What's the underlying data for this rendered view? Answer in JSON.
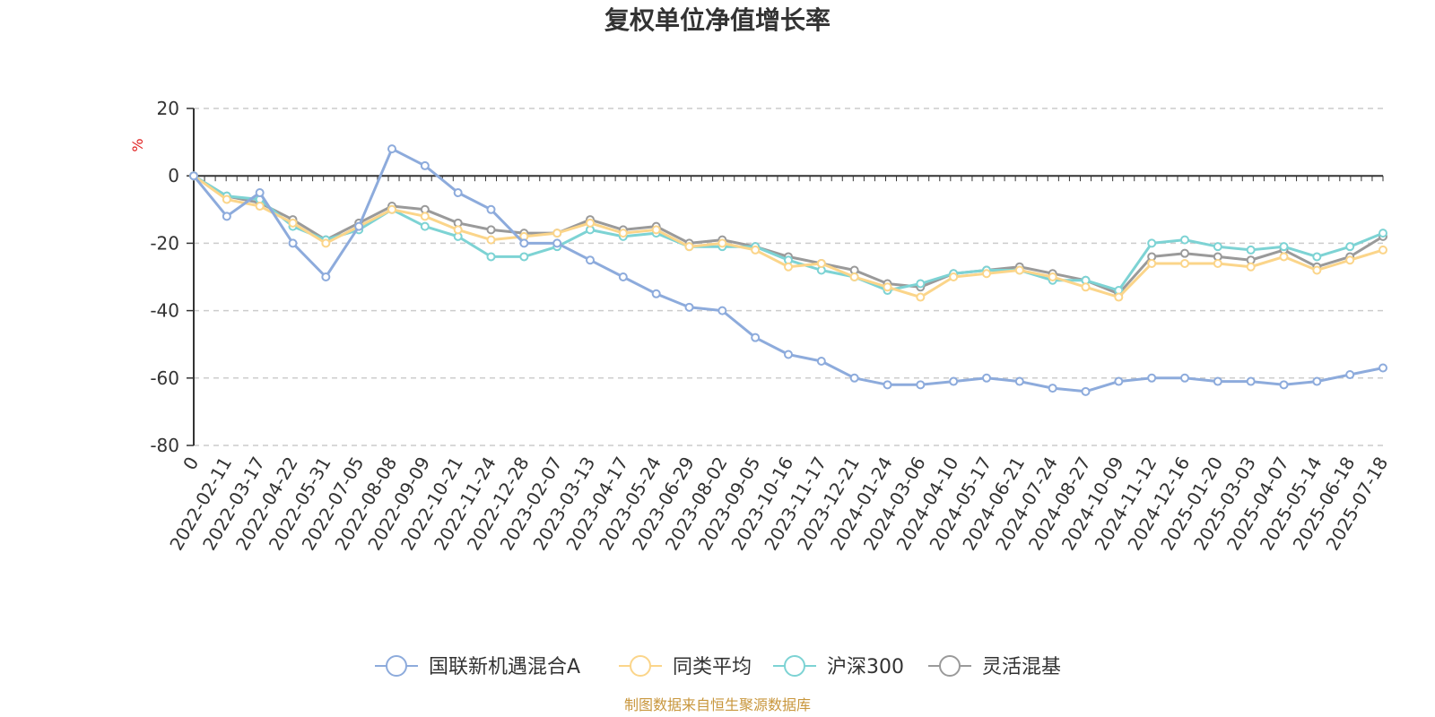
{
  "chart_data": {
    "type": "line",
    "title": "复权单位净值增长率",
    "ylabel": "%",
    "ylim": [
      -80,
      20
    ],
    "y_ticks": [
      "20",
      "0",
      "-20",
      "-40",
      "-60",
      "-80"
    ],
    "grid": true,
    "legend_position": "bottom",
    "x": [
      "0",
      "2022-02-11",
      "2022-03-17",
      "2022-04-22",
      "2022-05-31",
      "2022-07-05",
      "2022-08-08",
      "2022-09-09",
      "2022-10-21",
      "2022-11-24",
      "2022-12-28",
      "2023-02-07",
      "2023-03-13",
      "2023-04-17",
      "2023-05-24",
      "2023-06-29",
      "2023-08-02",
      "2023-09-05",
      "2023-10-16",
      "2023-11-17",
      "2023-12-21",
      "2024-01-24",
      "2024-03-06",
      "2024-04-10",
      "2024-05-17",
      "2024-06-21",
      "2024-07-24",
      "2024-08-27",
      "2024-10-09",
      "2024-11-12",
      "2024-12-16",
      "2025-01-20",
      "2025-03-03",
      "2025-04-07",
      "2025-05-14",
      "2025-06-18",
      "2025-07-18"
    ],
    "series": [
      {
        "name": "国联新机遇混合A",
        "color": "#8dabdc",
        "values": [
          0,
          -12,
          -5,
          -20,
          -30,
          -15,
          8,
          3,
          -5,
          -10,
          -20,
          -20,
          -25,
          -30,
          -35,
          -39,
          -40,
          -48,
          -53,
          -55,
          -60,
          -62,
          -62,
          -61,
          -60,
          -61,
          -63,
          -64,
          -61,
          -60,
          -60,
          -61,
          -61,
          -62,
          -61,
          -59,
          -57
        ]
      },
      {
        "name": "同类平均",
        "color": "#fbd58a",
        "values": [
          0,
          -7,
          -9,
          -14,
          -20,
          -15,
          -10,
          -12,
          -16,
          -19,
          -18,
          -17,
          -14,
          -17,
          -16,
          -21,
          -20,
          -22,
          -27,
          -26,
          -30,
          -33,
          -36,
          -30,
          -29,
          -28,
          -30,
          -33,
          -36,
          -26,
          -26,
          -26,
          -27,
          -24,
          -28,
          -25,
          -22
        ]
      },
      {
        "name": "沪深300",
        "color": "#7dd3d4",
        "values": [
          0,
          -6,
          -7,
          -15,
          -19,
          -16,
          -10,
          -15,
          -18,
          -24,
          -24,
          -21,
          -16,
          -18,
          -17,
          -21,
          -21,
          -21,
          -25,
          -28,
          -30,
          -34,
          -32,
          -29,
          -28,
          -28,
          -31,
          -31,
          -34,
          -20,
          -19,
          -21,
          -22,
          -21,
          -24,
          -21,
          -17
        ]
      },
      {
        "name": "灵活混基",
        "color": "#9a9a9a",
        "values": [
          0,
          -6,
          -8,
          -13,
          -19,
          -14,
          -9,
          -10,
          -14,
          -16,
          -17,
          -17,
          -13,
          -16,
          -15,
          -20,
          -19,
          -21,
          -24,
          -26,
          -28,
          -32,
          -33,
          -29,
          -28,
          -27,
          -29,
          -31,
          -35,
          -24,
          -23,
          -24,
          -25,
          -22,
          -27,
          -24,
          -18
        ]
      }
    ]
  },
  "legend": [
    {
      "label": "国联新机遇混合A",
      "color": "#8dabdc"
    },
    {
      "label": "同类平均",
      "color": "#fbd58a"
    },
    {
      "label": "沪深300",
      "color": "#7dd3d4"
    },
    {
      "label": "灵活混基",
      "color": "#9a9a9a"
    }
  ],
  "source_text": "制图数据来自恒生聚源数据库"
}
